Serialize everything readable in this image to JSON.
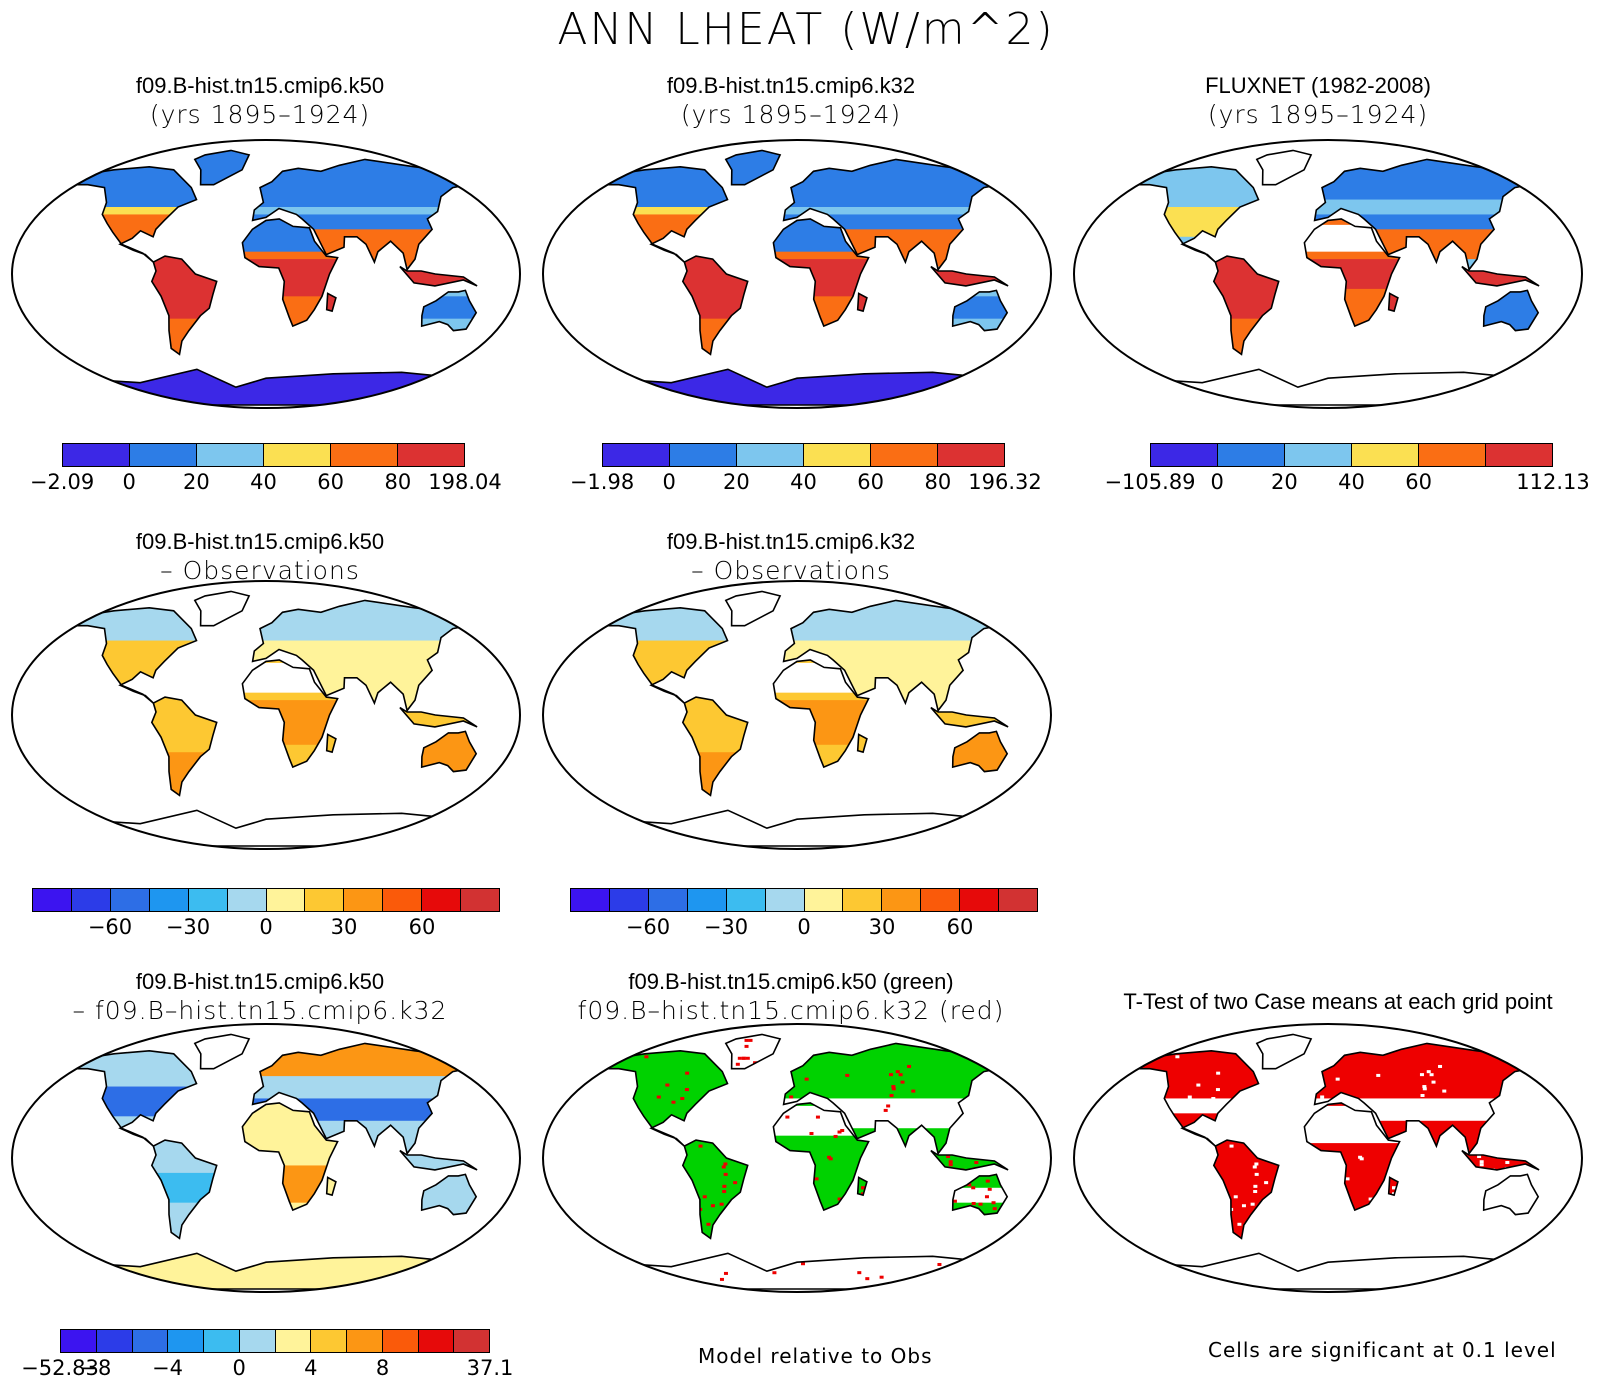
{
  "page_title": "ANN LHEAT (W/m^2)",
  "panels": [
    {
      "id": "p1",
      "title1": "f09.B-hist.tn15.cmip6.k50",
      "title2": "(yrs 1895–1924)",
      "kind": "abs"
    },
    {
      "id": "p2",
      "title1": "f09.B-hist.tn15.cmip6.k32",
      "title2": "(yrs 1895–1924)",
      "kind": "abs"
    },
    {
      "id": "p3",
      "title1": "FLUXNET (1982-2008)",
      "title2": "(yrs 1895–1924)",
      "kind": "obs"
    },
    {
      "id": "p4",
      "title1": "f09.B-hist.tn15.cmip6.k50",
      "title2": "– Observations",
      "kind": "bias"
    },
    {
      "id": "p5",
      "title1": "f09.B-hist.tn15.cmip6.k32",
      "title2": "– Observations",
      "kind": "bias"
    },
    {
      "id": "p6",
      "title1": "f09.B-hist.tn15.cmip6.k50",
      "title2": "– f09.B–hist.tn15.cmip6.k32",
      "kind": "diff"
    },
    {
      "id": "p7",
      "title1": "f09.B-hist.tn15.cmip6.k50 (green)",
      "title2": "f09.B–hist.tn15.cmip6.k32 (red)",
      "kind": "rel"
    },
    {
      "id": "p8",
      "title1": "T-Test of two Case means at each grid point",
      "title2": "",
      "kind": "ttest"
    }
  ],
  "colorbars": {
    "abs_k50": {
      "colors": [
        "#3c28e6",
        "#2d7de6",
        "#7dc6ee",
        "#fbe052",
        "#fa6e14",
        "#dc3232"
      ],
      "labels": [
        "−2.09",
        "0",
        "20",
        "40",
        "60",
        "80",
        "198.04"
      ]
    },
    "abs_k32": {
      "colors": [
        "#3c28e6",
        "#2d7de6",
        "#7dc6ee",
        "#fbe052",
        "#fa6e14",
        "#dc3232"
      ],
      "labels": [
        "−1.98",
        "0",
        "20",
        "40",
        "60",
        "80",
        "196.32"
      ]
    },
    "abs_obs": {
      "colors": [
        "#3c28e6",
        "#2d7de6",
        "#7dc6ee",
        "#fbe052",
        "#fa6e14",
        "#dc3232"
      ],
      "labels": [
        "−105.89",
        "0",
        "20",
        "40",
        "60",
        "",
        "112.13"
      ]
    },
    "bias": {
      "colors": [
        "#3c14f0",
        "#2c3ce8",
        "#2d6ee6",
        "#1e96f0",
        "#3cbcf0",
        "#a6d8ee",
        "#fff39a",
        "#fdc832",
        "#fc9614",
        "#fa5a0a",
        "#e60a0a",
        "#d23232"
      ],
      "labels": [
        "",
        "",
        "−60",
        "",
        "−30",
        "",
        "0",
        "",
        "30",
        "",
        "60",
        "",
        ""
      ]
    },
    "diff": {
      "colors": [
        "#3c14f0",
        "#2c3ce8",
        "#2d6ee6",
        "#1e96f0",
        "#3cbcf0",
        "#a6d8ee",
        "#fff39a",
        "#fdc832",
        "#fc9614",
        "#fa5a0a",
        "#e60a0a",
        "#d23232"
      ],
      "labels": [
        "−52.83",
        "−8",
        "",
        "−4",
        "",
        "0",
        "",
        "4",
        "",
        "8",
        "",
        "",
        "37.1"
      ]
    }
  },
  "footnotes": {
    "rel": "Model relative to Obs",
    "ttest": "Cells are significant at 0.1 level"
  },
  "map_colors": {
    "ocean": "#ffffff",
    "coast": "#000000",
    "green": "#00d200",
    "red": "#ee0000"
  }
}
